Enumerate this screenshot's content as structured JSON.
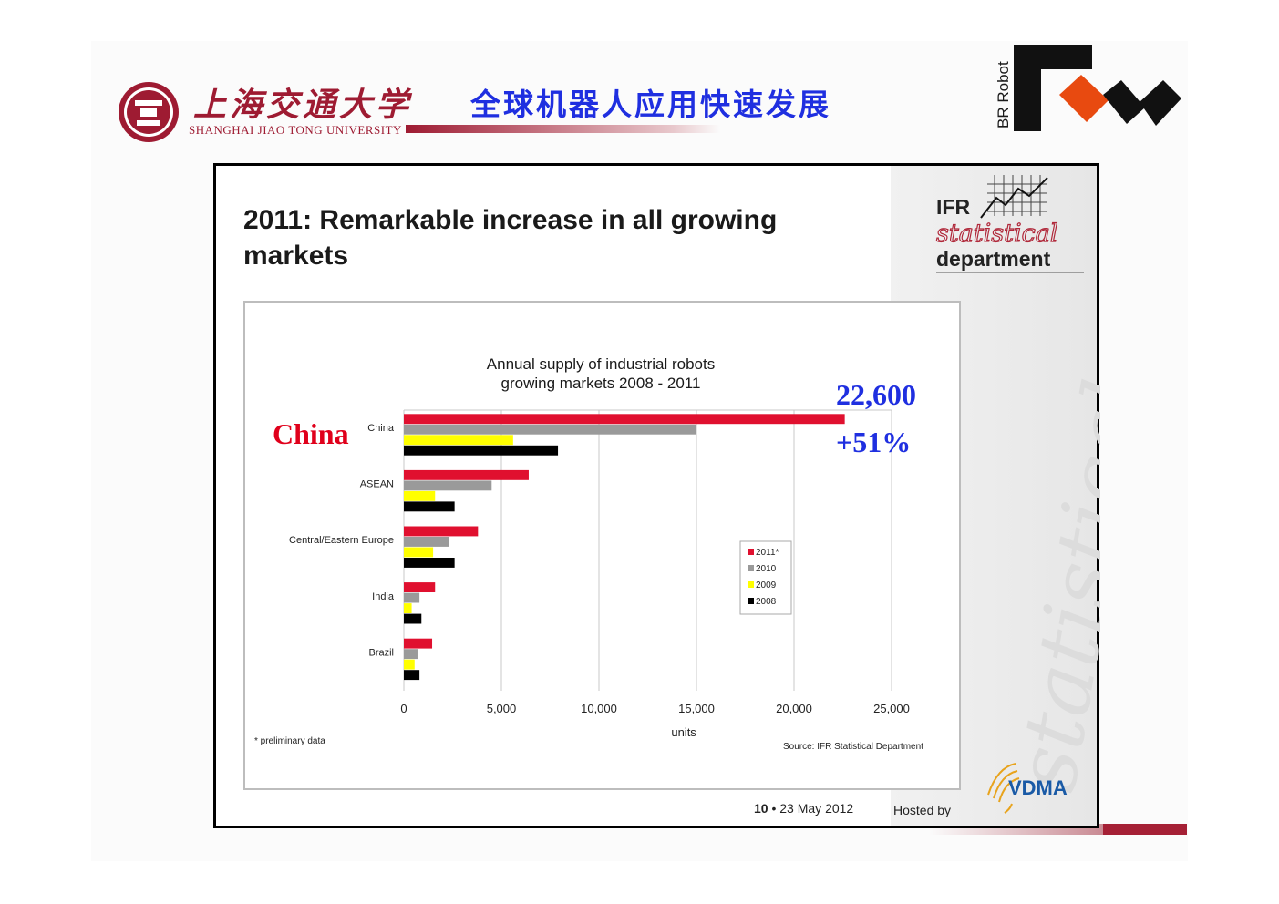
{
  "header": {
    "university_cn": "上海交通大学",
    "university_en": "SHANGHAI JIAO TONG UNIVERSITY",
    "slide_title": "全球机器人应用快速发展",
    "brand_text": "BR Robot"
  },
  "panel": {
    "title": "2011: Remarkable increase in all growing markets",
    "ifr_logo": {
      "line1": "IFR",
      "line2": "statistical",
      "line3": "department"
    },
    "footer_page": "10",
    "footer_date": "23 May 2012",
    "hosted_by": "Hosted by",
    "vdma": "VDMA",
    "watermark_text": "statistical"
  },
  "annotations": {
    "value": "22,600",
    "growth": "+51%",
    "country": "China"
  },
  "chart_data": {
    "type": "bar",
    "orientation": "horizontal",
    "title": "Annual supply of industrial robots growing markets 2008 - 2011",
    "title_line1": "Annual supply of industrial robots",
    "title_line2": "growing markets 2008 - 2011",
    "xlabel": "units",
    "ylabel": "",
    "categories": [
      "China",
      "ASEAN",
      "Central/Eastern Europe",
      "India",
      "Brazil"
    ],
    "series": [
      {
        "name": "2011*",
        "color": "#e0102f",
        "values": [
          22600,
          6400,
          3800,
          1600,
          1450
        ]
      },
      {
        "name": "2010",
        "color": "#9a9a9a",
        "values": [
          15000,
          4500,
          2300,
          800,
          700
        ]
      },
      {
        "name": "2009",
        "color": "#ffff00",
        "values": [
          5600,
          1600,
          1500,
          400,
          550
        ]
      },
      {
        "name": "2008",
        "color": "#000000",
        "values": [
          7900,
          2600,
          2600,
          900,
          800
        ]
      }
    ],
    "xlim": [
      0,
      25000
    ],
    "x_ticks": [
      "0",
      "5,000",
      "10,000",
      "15,000",
      "20,000",
      "25,000"
    ],
    "grid": "vertical",
    "legend_position": "right-middle",
    "note": "* preliminary data",
    "source": "Source: IFR Statistical Department"
  }
}
